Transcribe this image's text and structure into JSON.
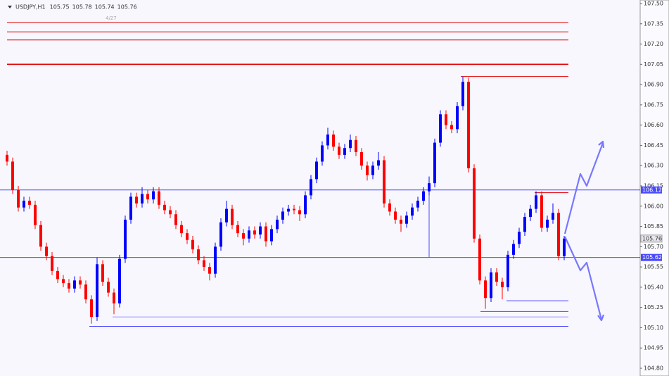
{
  "chart_data": {
    "type": "candlestick",
    "symbol": "USDJPY,H1",
    "header_ohlc": [
      105.75,
      105.78,
      105.74,
      105.76
    ],
    "annotation": "4/27",
    "up_color": "#0000ff",
    "down_color": "#ff0000",
    "open": [
      106.38,
      106.33,
      106.12,
      105.99,
      106.04,
      106.01,
      105.86,
      105.7,
      105.63,
      105.52,
      105.46,
      105.43,
      105.39,
      105.45,
      105.42,
      105.31,
      105.18,
      105.57,
      105.44,
      105.36,
      105.28,
      105.61,
      105.9,
      106.07,
      106.02,
      106.09,
      106.05,
      106.11,
      106.01,
      105.97,
      105.94,
      105.86,
      105.8,
      105.75,
      105.68,
      105.6,
      105.55,
      105.5,
      105.7,
      105.88,
      105.98,
      105.86,
      105.8,
      105.76,
      105.82,
      105.79,
      105.85,
      105.74,
      105.83,
      105.9,
      105.96,
      105.98,
      105.97,
      105.94,
      106.08,
      106.2,
      106.33,
      106.45,
      106.53,
      106.44,
      106.38,
      106.43,
      106.49,
      106.4,
      106.3,
      106.23,
      106.3,
      106.34,
      106.02,
      105.96,
      105.9,
      105.87,
      105.93,
      105.99,
      106.04,
      106.11,
      106.17,
      106.47,
      106.68,
      106.6,
      106.57,
      106.74,
      106.92,
      106.28,
      105.76,
      105.45,
      105.32,
      105.51,
      105.44,
      105.4,
      105.64,
      105.72,
      105.81,
      105.92,
      105.98,
      106.08,
      105.84,
      105.9,
      105.95,
      105.63
    ],
    "high": [
      106.41,
      106.36,
      106.15,
      106.07,
      106.07,
      106.04,
      105.89,
      105.73,
      105.66,
      105.55,
      105.49,
      105.46,
      105.48,
      105.48,
      105.45,
      105.34,
      105.62,
      105.6,
      105.47,
      105.39,
      105.64,
      105.93,
      106.1,
      106.1,
      106.14,
      106.12,
      106.14,
      106.14,
      106.04,
      106.0,
      105.97,
      105.89,
      105.83,
      105.78,
      105.71,
      105.63,
      105.58,
      105.73,
      105.91,
      106.04,
      106.01,
      105.89,
      105.83,
      105.85,
      105.85,
      105.88,
      105.88,
      105.86,
      105.93,
      105.99,
      106.01,
      106.01,
      106.0,
      106.11,
      106.23,
      106.36,
      106.48,
      106.58,
      106.56,
      106.47,
      106.46,
      106.53,
      106.52,
      106.43,
      106.33,
      106.33,
      106.4,
      106.37,
      106.05,
      105.99,
      105.93,
      105.96,
      106.02,
      106.07,
      106.14,
      106.22,
      106.5,
      106.71,
      106.71,
      106.63,
      106.77,
      106.96,
      106.95,
      106.31,
      105.79,
      105.48,
      105.54,
      105.54,
      105.47,
      105.67,
      105.75,
      105.84,
      105.95,
      106.01,
      106.11,
      106.11,
      105.93,
      106.02,
      105.98,
      105.78
    ],
    "low": [
      106.3,
      106.09,
      105.96,
      105.96,
      105.98,
      105.83,
      105.67,
      105.6,
      105.49,
      105.43,
      105.4,
      105.36,
      105.36,
      105.39,
      105.28,
      105.13,
      105.15,
      105.41,
      105.33,
      105.2,
      105.25,
      105.58,
      105.87,
      105.99,
      105.99,
      106.02,
      106.02,
      105.98,
      105.94,
      105.91,
      105.83,
      105.77,
      105.72,
      105.65,
      105.57,
      105.52,
      105.45,
      105.47,
      105.67,
      105.85,
      105.83,
      105.77,
      105.71,
      105.73,
      105.76,
      105.76,
      105.7,
      105.71,
      105.8,
      105.87,
      105.93,
      105.94,
      105.89,
      105.91,
      106.05,
      106.17,
      106.3,
      106.42,
      106.41,
      106.35,
      106.35,
      106.4,
      106.37,
      106.27,
      106.19,
      106.2,
      106.27,
      105.99,
      105.93,
      105.87,
      105.81,
      105.84,
      105.9,
      105.96,
      106.01,
      106.08,
      106.14,
      106.44,
      106.57,
      106.54,
      106.54,
      106.71,
      106.25,
      105.73,
      105.42,
      105.24,
      105.29,
      105.41,
      105.31,
      105.37,
      105.61,
      105.69,
      105.78,
      105.89,
      105.95,
      105.81,
      105.81,
      105.87,
      105.6,
      105.6
    ],
    "close": [
      106.33,
      106.12,
      105.99,
      106.04,
      106.01,
      105.86,
      105.7,
      105.63,
      105.52,
      105.46,
      105.43,
      105.39,
      105.45,
      105.42,
      105.31,
      105.18,
      105.57,
      105.44,
      105.36,
      105.28,
      105.61,
      105.9,
      106.07,
      106.02,
      106.09,
      106.05,
      106.11,
      106.01,
      105.97,
      105.94,
      105.86,
      105.8,
      105.75,
      105.68,
      105.6,
      105.55,
      105.5,
      105.7,
      105.88,
      105.98,
      105.86,
      105.8,
      105.76,
      105.82,
      105.79,
      105.85,
      105.74,
      105.83,
      105.9,
      105.96,
      105.98,
      105.97,
      105.94,
      106.08,
      106.2,
      106.33,
      106.45,
      106.53,
      106.44,
      106.38,
      106.43,
      106.49,
      106.4,
      106.3,
      106.23,
      106.3,
      106.34,
      106.02,
      105.96,
      105.9,
      105.87,
      105.93,
      105.99,
      106.04,
      106.11,
      106.17,
      106.47,
      106.68,
      106.6,
      106.57,
      106.74,
      106.92,
      106.28,
      105.76,
      105.45,
      105.32,
      105.51,
      105.44,
      105.4,
      105.64,
      105.72,
      105.81,
      105.92,
      105.98,
      106.08,
      105.84,
      105.9,
      105.95,
      105.63,
      105.76
    ],
    "levels": [
      {
        "value": 107.36,
        "color": "#e00000"
      },
      {
        "value": 107.29,
        "color": "#e00000"
      },
      {
        "value": 107.23,
        "color": "#e00000"
      },
      {
        "value": 107.05,
        "color": "#e00000"
      },
      {
        "value": 106.96,
        "color": "#e00000"
      },
      {
        "value": 106.1,
        "color": "#e00000"
      },
      {
        "value": 106.12,
        "color": "#4a4aff",
        "label": "106.12"
      },
      {
        "value": 105.62,
        "color": "#4a4aff",
        "label": "105.62"
      },
      {
        "value": 105.3,
        "color": "#4a4aff"
      },
      {
        "value": 105.22,
        "color": "#4a4aff"
      },
      {
        "value": 105.18,
        "color": "#9a9aff"
      },
      {
        "value": 105.11,
        "color": "#4a4aff"
      }
    ],
    "current_price": {
      "value": 105.76,
      "label": "105.76"
    },
    "ylim": [
      104.8,
      107.5
    ],
    "yticks": [
      {
        "value": 107.5,
        "label": "107.50"
      },
      {
        "value": 107.35,
        "label": "107.35"
      },
      {
        "value": 107.2,
        "label": "107.20"
      },
      {
        "value": 107.05,
        "label": "107.05"
      },
      {
        "value": 106.9,
        "label": "106.90"
      },
      {
        "value": 106.75,
        "label": "106.75"
      },
      {
        "value": 106.6,
        "label": "106.60"
      },
      {
        "value": 106.45,
        "label": "106.45"
      },
      {
        "value": 106.3,
        "label": "106.30"
      },
      {
        "value": 106.15,
        "label": "106.15"
      },
      {
        "value": 106.0,
        "label": "106.00"
      },
      {
        "value": 105.85,
        "label": "105.85"
      },
      {
        "value": 105.7,
        "label": "105.70"
      },
      {
        "value": 105.55,
        "label": "105.55"
      },
      {
        "value": 105.4,
        "label": "105.40"
      },
      {
        "value": 105.25,
        "label": "105.25"
      },
      {
        "value": 105.1,
        "label": "105.10"
      },
      {
        "value": 104.95,
        "label": "104.95"
      },
      {
        "value": 104.8,
        "label": "104.80"
      }
    ]
  }
}
